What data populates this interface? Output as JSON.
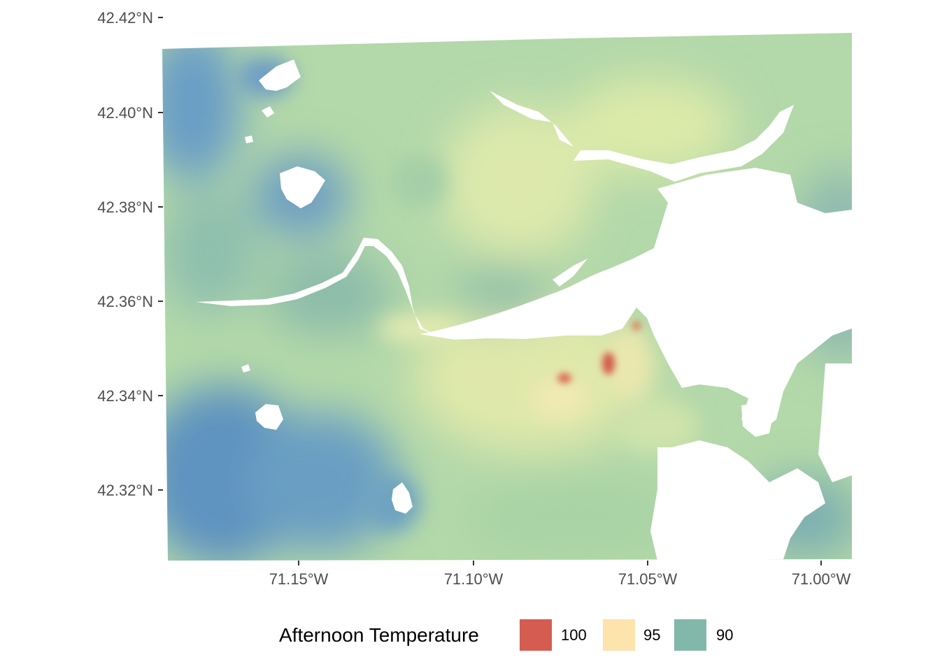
{
  "map": {
    "x_ticks": [
      "71.15°W",
      "71.10°W",
      "71.05°W",
      "71.00°W"
    ],
    "y_ticks": [
      "42.42°N",
      "42.40°N",
      "42.38°N",
      "42.36°N",
      "42.34°N",
      "42.32°N"
    ],
    "palette": {
      "cool": "#5e95c2",
      "mid_cool": "#8dbfa3",
      "neutral": "#bfe0ad",
      "warm": "#ede9a9",
      "hot": "#d7574b",
      "water": "#ffffff"
    }
  },
  "legend": {
    "title": "Afternoon Temperature",
    "items": [
      {
        "label": "100",
        "color": "#d45c50"
      },
      {
        "label": "95",
        "color": "#fde3ac"
      },
      {
        "label": "90",
        "color": "#82b8aa"
      }
    ]
  }
}
